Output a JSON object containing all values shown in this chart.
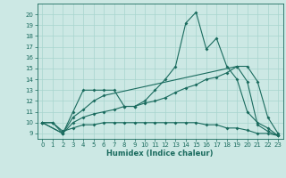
{
  "xlabel": "Humidex (Indice chaleur)",
  "xlim": [
    -0.5,
    23.5
  ],
  "ylim": [
    8.5,
    21.0
  ],
  "yticks": [
    9,
    10,
    11,
    12,
    13,
    14,
    15,
    16,
    17,
    18,
    19,
    20
  ],
  "xticks": [
    0,
    1,
    2,
    3,
    4,
    5,
    6,
    7,
    8,
    9,
    10,
    11,
    12,
    13,
    14,
    15,
    16,
    17,
    18,
    19,
    20,
    21,
    22,
    23
  ],
  "bg_color": "#cce8e4",
  "line_color": "#1a6b5e",
  "grid_color": "#a8d4ce",
  "series": [
    {
      "x": [
        0,
        1,
        2,
        3,
        4,
        5,
        6,
        7,
        8,
        9,
        10,
        11,
        12,
        13,
        14,
        15,
        16,
        17,
        18,
        19,
        20,
        21,
        22,
        23
      ],
      "y": [
        10,
        10,
        9,
        11,
        13,
        13,
        13,
        13,
        11.5,
        11.5,
        12,
        13,
        14,
        15.2,
        19.2,
        20.2,
        16.8,
        17.8,
        15.2,
        14,
        11,
        10,
        9.5,
        8.8
      ]
    },
    {
      "x": [
        0,
        2,
        3,
        4,
        5,
        6,
        19,
        20,
        21,
        22,
        23
      ],
      "y": [
        10,
        9,
        10.5,
        11.2,
        12,
        12.5,
        15.2,
        13.8,
        9.8,
        9.2,
        8.8
      ]
    },
    {
      "x": [
        0,
        2,
        3,
        4,
        5,
        6,
        7,
        8,
        9,
        10,
        11,
        12,
        13,
        14,
        15,
        16,
        17,
        18,
        19,
        20,
        21,
        22,
        23
      ],
      "y": [
        10,
        9,
        10,
        10.5,
        10.8,
        11,
        11.2,
        11.5,
        11.5,
        11.8,
        12,
        12.3,
        12.8,
        13.2,
        13.5,
        14,
        14.2,
        14.6,
        15.2,
        15.2,
        13.8,
        10.5,
        9
      ]
    },
    {
      "x": [
        0,
        1,
        2,
        3,
        4,
        5,
        6,
        7,
        8,
        9,
        10,
        11,
        12,
        13,
        14,
        15,
        16,
        17,
        18,
        19,
        20,
        21,
        22,
        23
      ],
      "y": [
        10,
        10,
        9.2,
        9.5,
        9.8,
        9.8,
        10,
        10,
        10,
        10,
        10,
        10,
        10,
        10,
        10,
        10,
        9.8,
        9.8,
        9.5,
        9.5,
        9.3,
        9.0,
        9.0,
        8.8
      ]
    }
  ]
}
